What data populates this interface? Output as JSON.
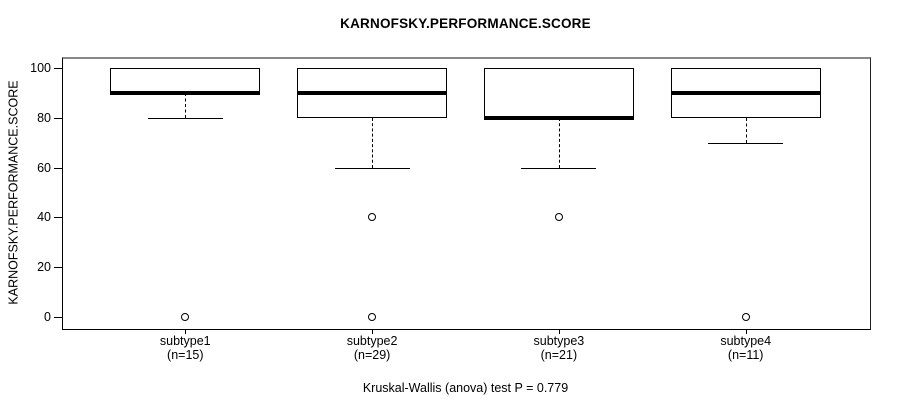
{
  "title": "KARNOFSKY.PERFORMANCE.SCORE",
  "caption": "Kruskal-Wallis (anova) test P = 0.779",
  "colors": {
    "stroke": "#000000",
    "frame_top": "#888888",
    "background": "#ffffff"
  },
  "chart_data": {
    "type": "boxplot",
    "title": "KARNOFSKY.PERFORMANCE.SCORE",
    "xlabel": "",
    "ylabel": "KARNOFSKY.PERFORMANCE.SCORE",
    "ylim": [
      0,
      100
    ],
    "yticks": [
      0,
      20,
      40,
      60,
      80,
      100
    ],
    "grid": false,
    "annotation": "Kruskal-Wallis (anova) test P = 0.779",
    "groups": [
      {
        "label": "subtype1",
        "n_label": "(n=15)",
        "n": 15,
        "whisker_low": 80,
        "q1": 90,
        "median": 90,
        "q3": 100,
        "whisker_high": 100,
        "outliers": [
          0
        ]
      },
      {
        "label": "subtype2",
        "n_label": "(n=29)",
        "n": 29,
        "whisker_low": 60,
        "q1": 80,
        "median": 90,
        "q3": 100,
        "whisker_high": 100,
        "outliers": [
          40,
          0
        ]
      },
      {
        "label": "subtype3",
        "n_label": "(n=21)",
        "n": 21,
        "whisker_low": 60,
        "q1": 80,
        "median": 80,
        "q3": 100,
        "whisker_high": 100,
        "outliers": [
          40
        ]
      },
      {
        "label": "subtype4",
        "n_label": "(n=11)",
        "n": 11,
        "whisker_low": 70,
        "q1": 80,
        "median": 90,
        "q3": 100,
        "whisker_high": 100,
        "outliers": [
          0
        ]
      }
    ]
  }
}
